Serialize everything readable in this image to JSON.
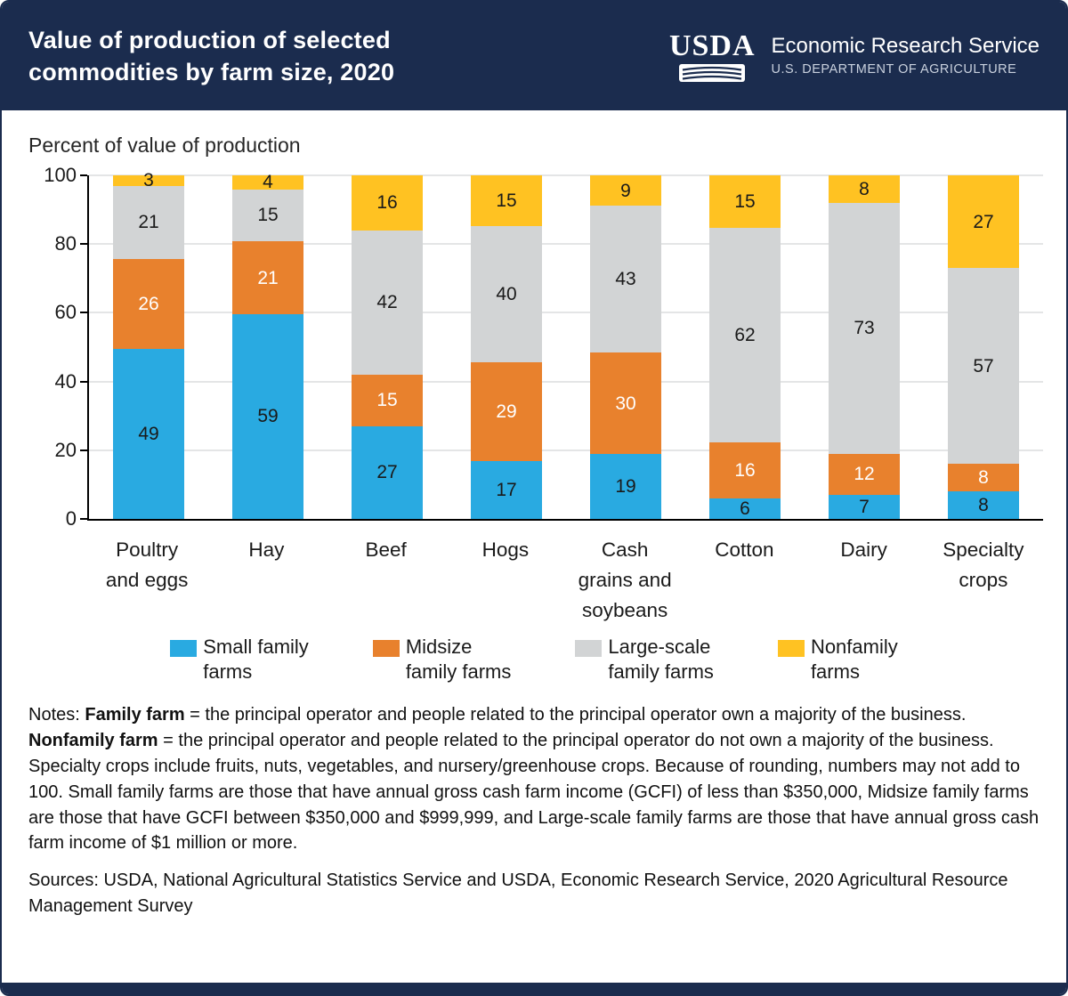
{
  "header": {
    "title": "Value of production of selected\ncommodities by farm size, 2020",
    "logo_text": "USDA",
    "org_name": "Economic Research Service",
    "org_sub": "U.S. DEPARTMENT OF AGRICULTURE"
  },
  "chart_data": {
    "type": "bar",
    "stacked": true,
    "title": "Percent of value of production",
    "categories": [
      "Poultry\nand eggs",
      "Hay",
      "Beef",
      "Hogs",
      "Cash\ngrains and\nsoybeans",
      "Cotton",
      "Dairy",
      "Specialty\ncrops"
    ],
    "series": [
      {
        "name": "Small family farms",
        "legend_label": "Small family\nfarms",
        "color": "#29aae1",
        "text_color": "#1a1a1a",
        "values": [
          49,
          59,
          27,
          17,
          19,
          6,
          7,
          8
        ]
      },
      {
        "name": "Midsize family farms",
        "legend_label": "Midsize\nfamily farms",
        "color": "#e8812d",
        "text_color": "#ffffff",
        "values": [
          26,
          21,
          15,
          29,
          30,
          16,
          12,
          8
        ]
      },
      {
        "name": "Large-scale family farms",
        "legend_label": "Large-scale\nfamily farms",
        "color": "#d2d4d5",
        "text_color": "#1a1a1a",
        "values": [
          21,
          15,
          42,
          40,
          43,
          62,
          73,
          57
        ]
      },
      {
        "name": "Nonfamily farms",
        "legend_label": "Nonfamily\nfarms",
        "color": "#ffc222",
        "text_color": "#1a1a1a",
        "values": [
          3,
          4,
          16,
          15,
          9,
          15,
          8,
          27
        ]
      }
    ],
    "ylim": [
      0,
      100
    ],
    "yticks": [
      0,
      20,
      40,
      60,
      80,
      100
    ],
    "grid": true,
    "legend_position": "bottom"
  },
  "notes": {
    "prefix": "Notes: ",
    "bold1": "Family farm",
    "text1": " = the principal operator and people related to the principal operator own a majority of the business. ",
    "bold2": "Nonfamily farm",
    "text2": " = the principal operator and people related to the principal operator do not own a majority of the business. Specialty crops include fruits, nuts, vegetables, and nursery/greenhouse crops. Because of rounding, numbers may not add to 100. Small family farms are those that have annual gross cash farm income (GCFI) of less than $350,000, Midsize family farms are those that have GCFI between $350,000 and $999,999, and Large-scale family farms are those that have annual gross cash farm income of $1 million or more."
  },
  "sources": "Sources: USDA, National Agricultural Statistics Service and USDA, Economic Research Service, 2020 Agricultural Resource Management Survey"
}
